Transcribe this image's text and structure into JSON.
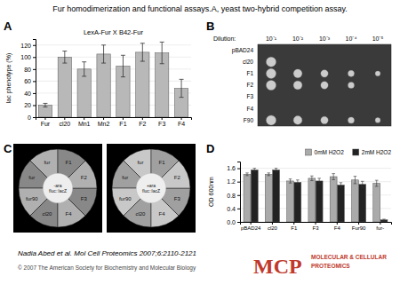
{
  "title": "Fur homodimerization and functional assays.A, yeast two-hybrid competition assay.",
  "chart_data": [
    {
      "type": "bar",
      "label": "A",
      "subtitle": "LexA-Fur X B42-Fur",
      "categories": [
        "Fur",
        "cl20",
        "Mn1",
        "Mn2",
        "F1",
        "F2",
        "F3",
        "F4"
      ],
      "values": [
        20,
        100,
        80,
        105,
        85,
        108,
        107,
        48
      ],
      "errors": [
        3,
        10,
        12,
        15,
        18,
        15,
        18,
        15
      ],
      "ylabel": "lac phenotype (%)",
      "ylim": [
        0,
        130
      ],
      "yticks": [
        0,
        20,
        40,
        60,
        80,
        100,
        120
      ],
      "color": "#b8b8b8",
      "grid": true
    },
    {
      "type": "matrix",
      "label": "B",
      "xlabel": "Dilution:",
      "categories": [
        "pBAD24",
        "cl20",
        "F1",
        "F2",
        "F3",
        "F4",
        "F90"
      ],
      "x": [
        "10⁻¹",
        "10⁻²",
        "10⁻³",
        "10⁻⁴",
        "10⁻⁵"
      ],
      "spots": [
        [],
        [
          0
        ],
        [
          0,
          1,
          2,
          3,
          4
        ],
        [
          0,
          1,
          2,
          3
        ],
        [],
        [],
        [
          0,
          1,
          2,
          3,
          4
        ]
      ],
      "color": "#cccccc"
    },
    {
      "type": "pie",
      "label": "C",
      "categories": [
        "fur",
        "fur",
        "fur90",
        "cl20",
        "F4",
        "F3",
        "F2",
        "F1"
      ],
      "pies": [
        {
          "center_text": "-ara\nfluc::lacZ",
          "colors": [
            "#b0b0b0",
            "#888888",
            "#b0b0b0",
            "#888888",
            "#b0b0b0",
            "#888888",
            "#b0b0b0",
            "#888888"
          ]
        },
        {
          "center_text": "+ara\nfluc::lacZ",
          "colors": [
            "#c8c8c8",
            "#a0a0a0",
            "#c8c8c8",
            "#a0a0a0",
            "#c8c8c8",
            "#a0a0a0",
            "#c8c8c8",
            "#a0a0a0"
          ]
        }
      ]
    },
    {
      "type": "bar",
      "label": "D",
      "categories": [
        "pBAD24",
        "cl20",
        "F1",
        "F3",
        "F4",
        "Fur90",
        "fur-"
      ],
      "series": [
        {
          "name": "0mM H2O2",
          "color": "#aaaaaa",
          "values": [
            1.42,
            1.42,
            1.22,
            1.3,
            1.35,
            1.25,
            1.15
          ],
          "errors": [
            0.04,
            0.04,
            0.06,
            0.07,
            0.09,
            0.11,
            0.09
          ]
        },
        {
          "name": "2mM H2O2",
          "color": "#222222",
          "values": [
            1.55,
            1.55,
            1.18,
            1.22,
            1.1,
            1.12,
            0.06
          ],
          "errors": [
            0.05,
            0.05,
            0.07,
            0.08,
            0.07,
            0.09,
            0.02
          ]
        }
      ],
      "ylabel": "OD 600nm",
      "ylim": [
        0,
        1.8
      ],
      "yticks": [
        {
          "value": 0.0,
          "label": "0.0"
        },
        0.4,
        0.8,
        1.2,
        1.6
      ],
      "grid": true,
      "legend": "upper right"
    }
  ],
  "annotations": [
    {
      "text": "Nadia Abed et al. Mol Cell Proteomics 2007;6:2110-2121"
    },
    {
      "text": "© 2007 The American Society for Biochemistry and Molecular Biology",
      "color": "#444444"
    },
    {
      "text": "MCP",
      "color": "#c0392b"
    },
    {
      "text": "MOLECULAR & CELLULAR\nPROTEOMICS",
      "color": "#c0392b"
    }
  ]
}
